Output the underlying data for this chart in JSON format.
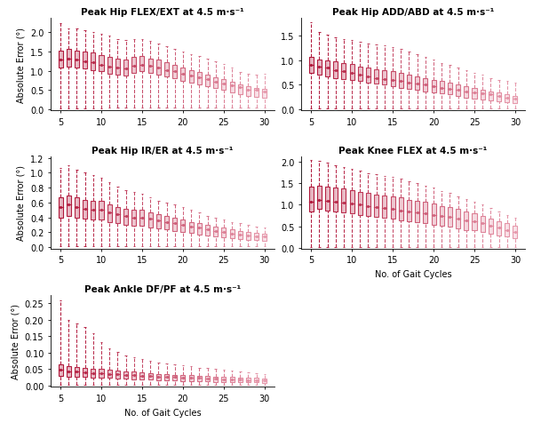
{
  "subplots": [
    {
      "title": "Peak Hip FLEX/EXT at 4.5 m·s⁻¹",
      "ylabel": "Absolute Error (°)",
      "ylim": [
        -0.02,
        2.35
      ],
      "yticks": [
        0.0,
        0.5,
        1.0,
        1.5,
        2.0
      ],
      "medians": [
        1.28,
        1.32,
        1.28,
        1.25,
        1.22,
        1.15,
        1.1,
        1.08,
        1.05,
        1.12,
        1.15,
        1.12,
        1.08,
        1.02,
        0.98,
        0.92,
        0.88,
        0.82,
        0.78,
        0.72,
        0.68,
        0.62,
        0.58,
        0.52,
        0.5,
        0.47
      ],
      "q1": [
        1.08,
        1.1,
        1.08,
        1.05,
        1.02,
        0.98,
        0.92,
        0.9,
        0.88,
        0.95,
        0.98,
        0.95,
        0.9,
        0.85,
        0.8,
        0.75,
        0.7,
        0.65,
        0.6,
        0.55,
        0.5,
        0.44,
        0.4,
        0.35,
        0.32,
        0.3
      ],
      "q3": [
        1.52,
        1.55,
        1.52,
        1.5,
        1.47,
        1.4,
        1.35,
        1.3,
        1.28,
        1.35,
        1.38,
        1.32,
        1.28,
        1.22,
        1.15,
        1.08,
        1.02,
        0.96,
        0.9,
        0.84,
        0.78,
        0.72,
        0.65,
        0.6,
        0.56,
        0.53
      ],
      "whislo": [
        0.02,
        0.02,
        0.02,
        0.02,
        0.02,
        0.02,
        0.05,
        0.05,
        0.05,
        0.05,
        0.05,
        0.05,
        0.05,
        0.05,
        0.05,
        0.05,
        0.05,
        0.05,
        0.05,
        0.05,
        0.05,
        0.05,
        0.05,
        0.05,
        0.05,
        0.05
      ],
      "whishi": [
        2.22,
        2.08,
        2.08,
        2.04,
        2.0,
        1.95,
        1.9,
        1.82,
        1.8,
        1.82,
        1.82,
        1.77,
        1.7,
        1.64,
        1.57,
        1.5,
        1.42,
        1.37,
        1.3,
        1.24,
        1.17,
        1.07,
        0.97,
        0.92,
        0.9,
        0.93
      ]
    },
    {
      "title": "Peak Hip ADD/ABD at 4.5 m·s⁻¹",
      "ylabel": "",
      "ylim": [
        -0.02,
        1.85
      ],
      "yticks": [
        0.0,
        0.5,
        1.0,
        1.5
      ],
      "medians": [
        0.9,
        0.87,
        0.84,
        0.8,
        0.77,
        0.74,
        0.7,
        0.67,
        0.64,
        0.62,
        0.6,
        0.57,
        0.54,
        0.52,
        0.5,
        0.47,
        0.44,
        0.42,
        0.4,
        0.37,
        0.34,
        0.32,
        0.3,
        0.27,
        0.24,
        0.22
      ],
      "q1": [
        0.74,
        0.7,
        0.67,
        0.64,
        0.62,
        0.6,
        0.57,
        0.54,
        0.52,
        0.5,
        0.47,
        0.44,
        0.42,
        0.4,
        0.37,
        0.34,
        0.32,
        0.3,
        0.27,
        0.24,
        0.22,
        0.2,
        0.18,
        0.16,
        0.14,
        0.12
      ],
      "q3": [
        1.07,
        1.02,
        1.0,
        0.97,
        0.94,
        0.92,
        0.87,
        0.84,
        0.82,
        0.8,
        0.77,
        0.74,
        0.7,
        0.67,
        0.64,
        0.6,
        0.57,
        0.54,
        0.5,
        0.47,
        0.44,
        0.4,
        0.37,
        0.34,
        0.3,
        0.28
      ],
      "whislo": [
        0.02,
        0.02,
        0.02,
        0.02,
        0.02,
        0.02,
        0.02,
        0.02,
        0.02,
        0.02,
        0.02,
        0.02,
        0.02,
        0.02,
        0.02,
        0.02,
        0.02,
        0.02,
        0.02,
        0.02,
        0.02,
        0.02,
        0.02,
        0.02,
        0.02,
        0.02
      ],
      "whishi": [
        1.77,
        1.57,
        1.52,
        1.47,
        1.42,
        1.4,
        1.37,
        1.34,
        1.32,
        1.3,
        1.27,
        1.22,
        1.17,
        1.12,
        1.07,
        1.02,
        0.94,
        0.9,
        0.84,
        0.8,
        0.74,
        0.7,
        0.64,
        0.6,
        0.57,
        0.54
      ]
    },
    {
      "title": "Peak Hip IR/ER at 4.5 m·s⁻¹",
      "ylabel": "Absolute Error (°)",
      "ylim": [
        -0.02,
        1.22
      ],
      "yticks": [
        0.0,
        0.2,
        0.4,
        0.6,
        0.8,
        1.0,
        1.2
      ],
      "medians": [
        0.54,
        0.57,
        0.54,
        0.52,
        0.5,
        0.5,
        0.47,
        0.44,
        0.42,
        0.4,
        0.4,
        0.38,
        0.36,
        0.34,
        0.32,
        0.3,
        0.28,
        0.26,
        0.24,
        0.22,
        0.2,
        0.18,
        0.17,
        0.16,
        0.15,
        0.14
      ],
      "q1": [
        0.4,
        0.42,
        0.4,
        0.38,
        0.37,
        0.37,
        0.34,
        0.32,
        0.3,
        0.29,
        0.29,
        0.27,
        0.25,
        0.24,
        0.22,
        0.2,
        0.19,
        0.17,
        0.16,
        0.14,
        0.13,
        0.12,
        0.11,
        0.1,
        0.1,
        0.09
      ],
      "q3": [
        0.67,
        0.7,
        0.67,
        0.64,
        0.62,
        0.62,
        0.58,
        0.54,
        0.52,
        0.5,
        0.5,
        0.47,
        0.44,
        0.42,
        0.4,
        0.37,
        0.34,
        0.32,
        0.3,
        0.28,
        0.26,
        0.24,
        0.22,
        0.2,
        0.19,
        0.18
      ],
      "whislo": [
        0.01,
        0.01,
        0.01,
        0.01,
        0.01,
        0.01,
        0.01,
        0.01,
        0.01,
        0.01,
        0.01,
        0.01,
        0.01,
        0.01,
        0.01,
        0.01,
        0.01,
        0.01,
        0.01,
        0.01,
        0.01,
        0.01,
        0.01,
        0.01,
        0.01,
        0.01
      ],
      "whishi": [
        1.07,
        1.1,
        1.04,
        1.0,
        0.97,
        0.94,
        0.87,
        0.82,
        0.77,
        0.74,
        0.72,
        0.67,
        0.62,
        0.6,
        0.57,
        0.54,
        0.5,
        0.47,
        0.42,
        0.4,
        0.37,
        0.34,
        0.32,
        0.3,
        0.28,
        0.26
      ]
    },
    {
      "title": "Peak Knee FLEX at 4.5 m·s⁻¹",
      "ylabel": "",
      "ylim": [
        -0.02,
        2.12
      ],
      "yticks": [
        0.0,
        0.5,
        1.0,
        1.5,
        2.0
      ],
      "medians": [
        1.07,
        1.12,
        1.1,
        1.07,
        1.04,
        1.02,
        1.0,
        0.97,
        0.94,
        0.92,
        0.9,
        0.87,
        0.84,
        0.82,
        0.8,
        0.77,
        0.74,
        0.72,
        0.67,
        0.64,
        0.62,
        0.57,
        0.52,
        0.47,
        0.42,
        0.37
      ],
      "q1": [
        0.84,
        0.9,
        0.87,
        0.84,
        0.82,
        0.8,
        0.77,
        0.74,
        0.72,
        0.7,
        0.67,
        0.64,
        0.62,
        0.6,
        0.57,
        0.54,
        0.52,
        0.5,
        0.46,
        0.42,
        0.4,
        0.36,
        0.32,
        0.29,
        0.26,
        0.22
      ],
      "q3": [
        1.42,
        1.44,
        1.42,
        1.4,
        1.37,
        1.34,
        1.3,
        1.27,
        1.24,
        1.22,
        1.2,
        1.17,
        1.12,
        1.1,
        1.07,
        1.02,
        0.97,
        0.94,
        0.9,
        0.84,
        0.8,
        0.74,
        0.67,
        0.62,
        0.57,
        0.52
      ],
      "whislo": [
        0.02,
        0.02,
        0.02,
        0.02,
        0.02,
        0.02,
        0.02,
        0.02,
        0.02,
        0.02,
        0.02,
        0.02,
        0.02,
        0.02,
        0.02,
        0.02,
        0.02,
        0.02,
        0.02,
        0.02,
        0.02,
        0.02,
        0.02,
        0.02,
        0.02,
        0.02
      ],
      "whishi": [
        2.04,
        2.02,
        1.97,
        1.92,
        1.87,
        1.84,
        1.8,
        1.74,
        1.7,
        1.67,
        1.64,
        1.6,
        1.54,
        1.5,
        1.44,
        1.4,
        1.32,
        1.27,
        1.2,
        1.14,
        1.07,
        1.0,
        0.92,
        0.84,
        0.77,
        0.7
      ]
    },
    {
      "title": "Peak Ankle DF/PF at 4.5 m·s⁻¹",
      "ylabel": "Absolute Error (°)",
      "ylim": [
        -0.004,
        0.275
      ],
      "yticks": [
        0.0,
        0.05,
        0.1,
        0.15,
        0.2,
        0.25
      ],
      "medians": [
        0.047,
        0.044,
        0.042,
        0.04,
        0.038,
        0.037,
        0.036,
        0.034,
        0.032,
        0.031,
        0.03,
        0.029,
        0.028,
        0.027,
        0.026,
        0.025,
        0.024,
        0.023,
        0.022,
        0.021,
        0.02,
        0.019,
        0.018,
        0.017,
        0.016,
        0.015
      ],
      "q1": [
        0.03,
        0.028,
        0.027,
        0.026,
        0.025,
        0.024,
        0.023,
        0.022,
        0.021,
        0.02,
        0.019,
        0.018,
        0.017,
        0.016,
        0.015,
        0.014,
        0.014,
        0.013,
        0.013,
        0.012,
        0.012,
        0.011,
        0.011,
        0.01,
        0.01,
        0.009
      ],
      "q3": [
        0.064,
        0.06,
        0.057,
        0.054,
        0.052,
        0.05,
        0.048,
        0.046,
        0.044,
        0.042,
        0.04,
        0.038,
        0.036,
        0.035,
        0.033,
        0.032,
        0.031,
        0.03,
        0.029,
        0.028,
        0.027,
        0.026,
        0.025,
        0.024,
        0.023,
        0.022
      ],
      "whislo": [
        0.002,
        0.002,
        0.002,
        0.002,
        0.002,
        0.002,
        0.002,
        0.002,
        0.002,
        0.002,
        0.002,
        0.002,
        0.002,
        0.002,
        0.002,
        0.002,
        0.002,
        0.002,
        0.002,
        0.002,
        0.002,
        0.002,
        0.002,
        0.002,
        0.002,
        0.002
      ],
      "whishi": [
        0.258,
        0.198,
        0.188,
        0.178,
        0.158,
        0.133,
        0.113,
        0.101,
        0.091,
        0.085,
        0.081,
        0.075,
        0.071,
        0.068,
        0.065,
        0.061,
        0.058,
        0.055,
        0.053,
        0.051,
        0.048,
        0.045,
        0.043,
        0.041,
        0.038,
        0.035
      ]
    }
  ],
  "n_cycles": [
    5,
    6,
    7,
    8,
    9,
    10,
    11,
    12,
    13,
    14,
    15,
    16,
    17,
    18,
    19,
    20,
    21,
    22,
    23,
    24,
    25,
    26,
    27,
    28,
    29,
    30
  ],
  "xlabel": "No. of Gait Cycles",
  "box_color_dark": "#B0173A",
  "box_color_light": "#F0B0C0",
  "background_color": "#ffffff",
  "figsize": [
    6.0,
    4.77
  ],
  "dpi": 100
}
